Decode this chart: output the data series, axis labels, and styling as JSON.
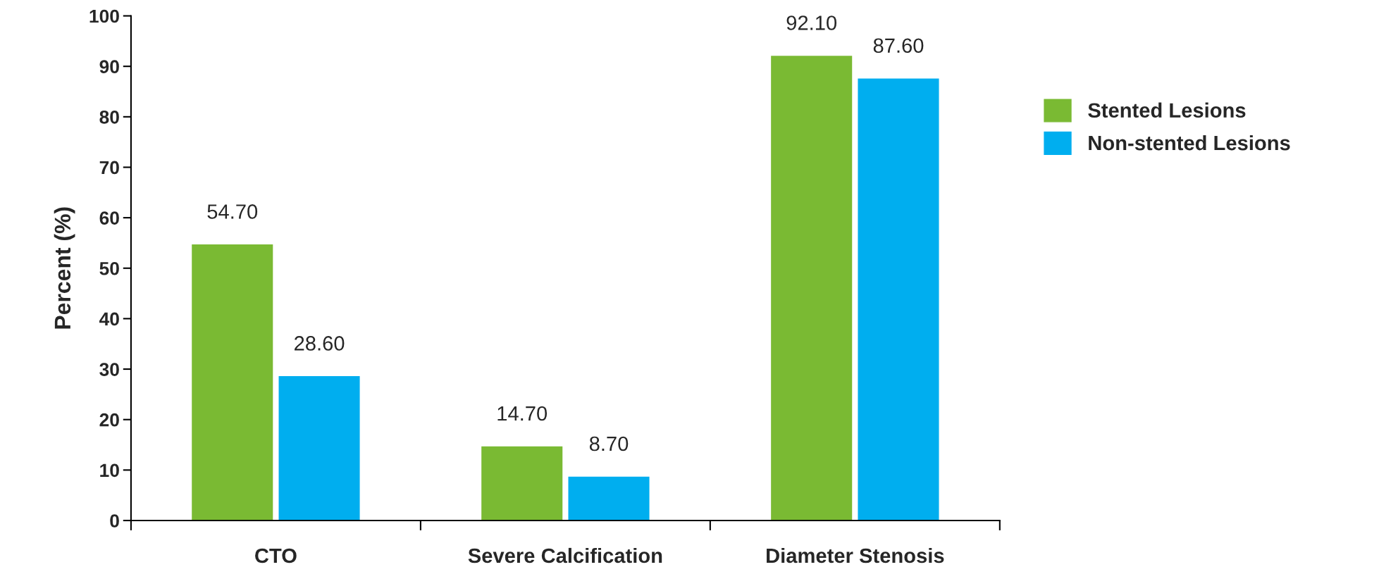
{
  "chart_data": {
    "type": "bar",
    "ylabel": "Percent (%)",
    "categories": [
      "CTO",
      "Severe Calcification",
      "Diameter Stenosis"
    ],
    "series": [
      {
        "name": "Stented Lesions",
        "color": "#7aba33",
        "values": [
          54.7,
          14.7,
          92.1
        ],
        "value_labels": [
          "54.70",
          "14.70",
          "92.10"
        ]
      },
      {
        "name": "Non-stented Lesions",
        "color": "#00aeef",
        "values": [
          28.6,
          8.7,
          87.6
        ],
        "value_labels": [
          "28.60",
          "8.70",
          "87.60"
        ]
      }
    ],
    "ylim": [
      0,
      100
    ],
    "yticks": [
      0,
      10,
      20,
      30,
      40,
      50,
      60,
      70,
      80,
      90,
      100
    ],
    "grid": false,
    "legend": "right"
  }
}
